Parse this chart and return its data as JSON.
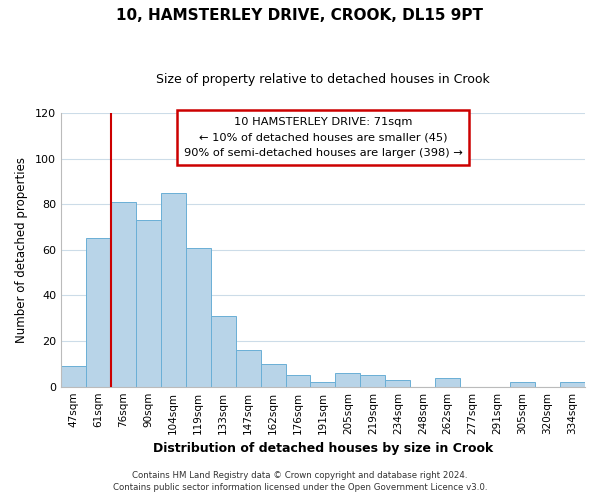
{
  "title_line1": "10, HAMSTERLEY DRIVE, CROOK, DL15 9PT",
  "title_line2": "Size of property relative to detached houses in Crook",
  "xlabel": "Distribution of detached houses by size in Crook",
  "ylabel": "Number of detached properties",
  "bar_labels": [
    "47sqm",
    "61sqm",
    "76sqm",
    "90sqm",
    "104sqm",
    "119sqm",
    "133sqm",
    "147sqm",
    "162sqm",
    "176sqm",
    "191sqm",
    "205sqm",
    "219sqm",
    "234sqm",
    "248sqm",
    "262sqm",
    "277sqm",
    "291sqm",
    "305sqm",
    "320sqm",
    "334sqm"
  ],
  "bar_values": [
    9,
    65,
    81,
    73,
    85,
    61,
    31,
    16,
    10,
    5,
    2,
    6,
    5,
    3,
    0,
    4,
    0,
    0,
    2,
    0,
    2
  ],
  "bar_color": "#b8d4e8",
  "bar_edge_color": "#6aafd6",
  "vline_color": "#cc0000",
  "vline_x": 1.5,
  "ylim": [
    0,
    120
  ],
  "yticks": [
    0,
    20,
    40,
    60,
    80,
    100,
    120
  ],
  "annotation_title": "10 HAMSTERLEY DRIVE: 71sqm",
  "annotation_line2": "← 10% of detached houses are smaller (45)",
  "annotation_line3": "90% of semi-detached houses are larger (398) →",
  "footer_line1": "Contains HM Land Registry data © Crown copyright and database right 2024.",
  "footer_line2": "Contains public sector information licensed under the Open Government Licence v3.0.",
  "background_color": "#ffffff",
  "grid_color": "#ccdce8"
}
